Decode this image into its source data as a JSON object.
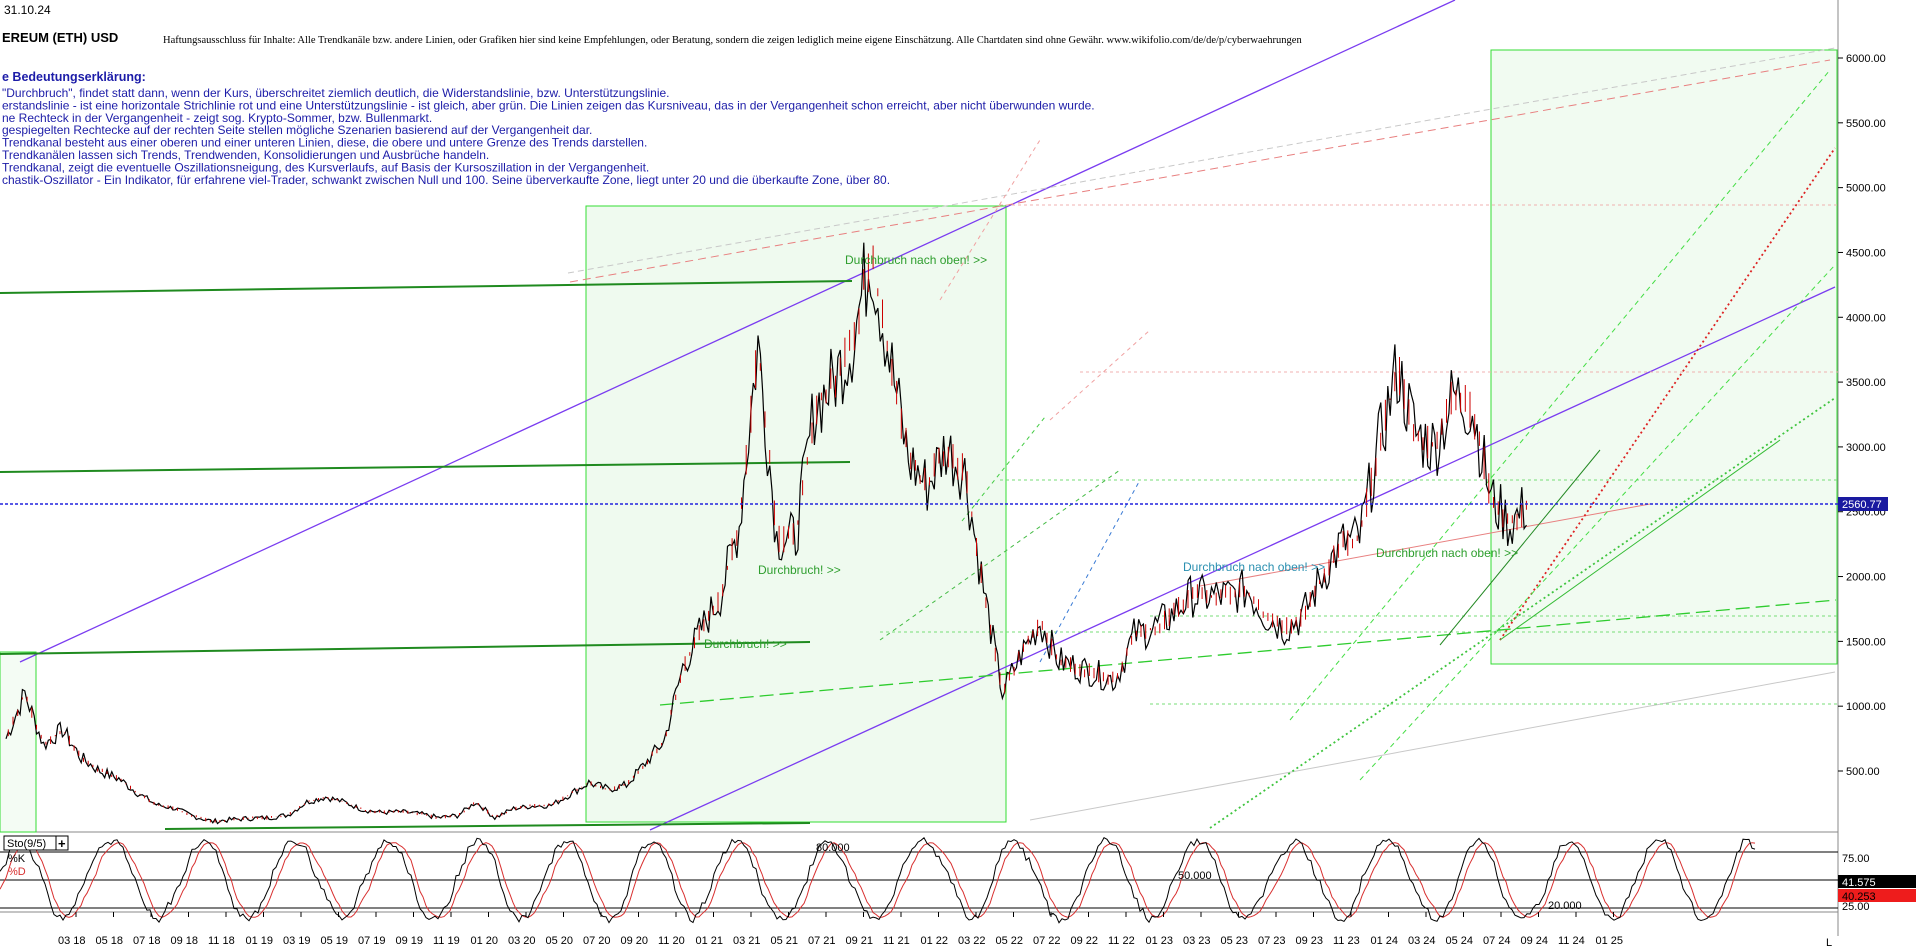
{
  "header": {
    "date": "31.10.24",
    "title": "EREUM (ETH) USD",
    "disclaimer": "Haftungsausschluss für Inhalte: Alle Trendkanäle bzw. andere Linien, oder Grafiken hier sind keine Empfehlungen, oder Beratung, sondern die zeigen lediglich meine eigene Einschätzung. Alle Chartdaten sind ohne Gewähr.  www.wikifolio.com/de/de/p/cyberwaehrungen"
  },
  "legend": {
    "heading": "e Bedeutungserklärung:",
    "lines": [
      "\"Durchbruch\", findet statt dann, wenn der Kurs, überschreitet ziemlich deutlich, die Widerstandslinie, bzw. Unterstützungslinie.",
      "erstandslinie - ist eine horizontale Strichlinie rot und eine Unterstützungslinie - ist gleich, aber grün. Die Linien zeigen das Kursniveau, das in der Vergangenheit schon erreicht, aber nicht überwunden wurde.",
      "ne Rechteck in der Vergangenheit - zeigt sog. Krypto-Sommer, bzw. Bullenmarkt.",
      "gespiegelten Rechtecke auf der rechten Seite stellen mögliche Szenarien basierend auf der Vergangenheit dar.",
      "Trendkanal besteht aus einer oberen und einer unteren Linien, diese, die obere und untere Grenze des Trends darstellen.",
      "Trendkanälen lassen sich Trends, Trendwenden, Konsolidierungen und Ausbrüche handeln.",
      "Trendkanal, zeigt die eventuelle Oszillationsneigung, des Kursverlaufs, auf Basis der Kursoszillation in der Vergangenheit.",
      "chastik-Oszillator - Ein Indikator, für erfahrene viel-Trader, schwankt zwischen Null und 100. Seine überverkaufte Zone, liegt unter 20 und die überkaufte Zone, über 80."
    ]
  },
  "annotations": [
    {
      "text": "Durchbruch nach oben! >>",
      "color": "#2e9e2e"
    },
    {
      "text": "Durchbruch! >>",
      "color": "#2e9e2e"
    },
    {
      "text": "Durchbruch! >>",
      "color": "#2e9e2e"
    },
    {
      "text": "Durchbruch nach oben! >>",
      "color": "#2a8fb0"
    },
    {
      "text": "Durchbruch nach oben! >>",
      "color": "#2e9e2e"
    }
  ],
  "price_axis": {
    "ticks": [
      "6000.00",
      "5500.00",
      "5000.00",
      "4500.00",
      "4000.00",
      "3500.00",
      "3000.00",
      "2500.00",
      "2000.00",
      "1500.00",
      "1000.00",
      "500.00"
    ],
    "current_price_label": "2560.77",
    "current_price": 2560.77
  },
  "stochastic": {
    "title": "Sto(9/5)",
    "add_button": "+",
    "k_label": "%K",
    "d_label": "%D",
    "axis_ticks": [
      "75.00",
      "25.00"
    ],
    "k_value_label": "41.575",
    "d_value_label": "40.253",
    "inner_labels": [
      "80.000",
      "50.000",
      "20.000"
    ]
  },
  "time_axis": {
    "labels": [
      "03 18",
      "05 18",
      "07 18",
      "09 18",
      "11 18",
      "01 19",
      "03 19",
      "05 19",
      "07 19",
      "09 19",
      "11 19",
      "01 20",
      "03 20",
      "05 20",
      "07 20",
      "09 20",
      "11 20",
      "01 21",
      "03 21",
      "05 21",
      "07 21",
      "09 21",
      "11 21",
      "01 22",
      "03 22",
      "05 22",
      "07 22",
      "09 22",
      "11 22",
      "01 23",
      "03 23",
      "05 23",
      "07 23",
      "09 23",
      "11 23",
      "01 24",
      "03 24",
      "05 24",
      "07 24",
      "09 24",
      "11 24",
      "01 25"
    ],
    "corner_label": "L"
  },
  "colors": {
    "price": "#000000",
    "down_candle": "#cc0000",
    "support": "#2ecc2e",
    "resistance": "#e06060",
    "trend_purple": "#7a3cf0",
    "current_price_line": "#2222dd",
    "stoch_k": "#000000",
    "stoch_d": "#d83030"
  },
  "chart_data": [
    {
      "type": "line",
      "title": "EREUM (ETH) USD",
      "xlabel": "",
      "ylabel": "",
      "ylim": [
        0,
        6200
      ],
      "x": [
        "2018-01",
        "2018-02",
        "2018-03",
        "2018-04",
        "2018-05",
        "2018-06",
        "2018-07",
        "2018-08",
        "2018-09",
        "2018-10",
        "2018-11",
        "2018-12",
        "2019-01",
        "2019-02",
        "2019-03",
        "2019-04",
        "2019-05",
        "2019-06",
        "2019-07",
        "2019-08",
        "2019-09",
        "2019-10",
        "2019-11",
        "2019-12",
        "2020-01",
        "2020-02",
        "2020-03",
        "2020-04",
        "2020-05",
        "2020-06",
        "2020-07",
        "2020-08",
        "2020-09",
        "2020-10",
        "2020-11",
        "2020-12",
        "2021-01",
        "2021-02",
        "2021-03",
        "2021-04",
        "2021-05",
        "2021-06",
        "2021-07",
        "2021-08",
        "2021-09",
        "2021-10",
        "2021-11",
        "2021-12",
        "2022-01",
        "2022-02",
        "2022-03",
        "2022-04",
        "2022-05",
        "2022-06",
        "2022-07",
        "2022-08",
        "2022-09",
        "2022-10",
        "2022-11",
        "2022-12",
        "2023-01",
        "2023-02",
        "2023-03",
        "2023-04",
        "2023-05",
        "2023-06",
        "2023-07",
        "2023-08",
        "2023-09",
        "2023-10",
        "2023-11",
        "2023-12",
        "2024-01",
        "2024-02",
        "2024-03",
        "2024-04",
        "2024-05",
        "2024-06",
        "2024-07",
        "2024-08",
        "2024-09",
        "2024-10"
      ],
      "series": [
        {
          "values": [
            750,
            1100,
            700,
            820,
            600,
            500,
            440,
            330,
            240,
            210,
            150,
            110,
            125,
            135,
            140,
            160,
            260,
            300,
            260,
            200,
            180,
            185,
            170,
            140,
            155,
            260,
            140,
            210,
            230,
            235,
            320,
            410,
            360,
            390,
            560,
            730,
            1300,
            1600,
            1850,
            2400,
            3800,
            2300,
            2300,
            3300,
            3500,
            3800,
            4500,
            3700,
            2900,
            2700,
            3000,
            2800,
            1900,
            1100,
            1400,
            1650,
            1350,
            1300,
            1250,
            1200,
            1550,
            1600,
            1700,
            1850,
            1850,
            1850,
            1900,
            1700,
            1600,
            1700,
            2000,
            2250,
            2300,
            3000,
            3600,
            3100,
            3000,
            3400,
            3300,
            2600,
            2400,
            2560
          ]
        }
      ]
    },
    {
      "type": "line",
      "title": "Sto(9/5)",
      "ylim": [
        0,
        100
      ],
      "series": [
        {
          "name": "%K",
          "last": 41.575
        },
        {
          "name": "%D",
          "last": 40.253
        }
      ]
    }
  ]
}
